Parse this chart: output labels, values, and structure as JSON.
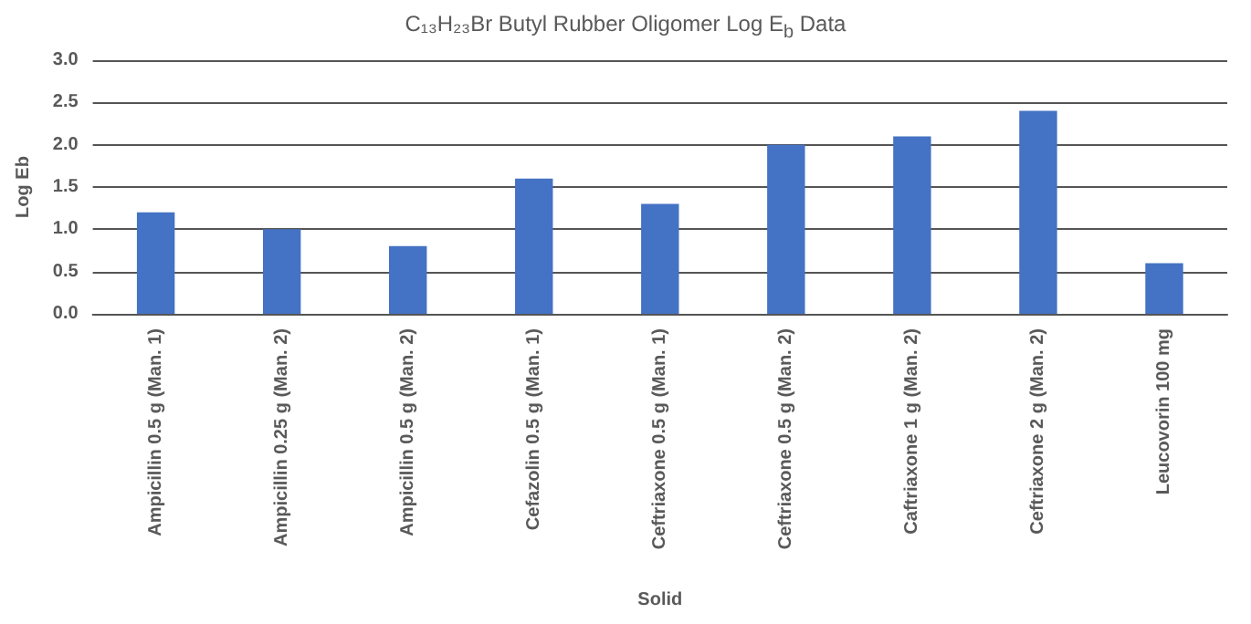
{
  "chart_data": {
    "type": "bar",
    "title": "C₁₃H₂₃Br Butyl Rubber Oligomer Log E$_{b}$ Data",
    "xlabel": "Solid",
    "ylabel": "Log Eb",
    "categories": [
      "Ampicillin 0.5 g (Man. 1)",
      "Ampicillin 0.25 g (Man. 2)",
      "Ampicillin 0.5 g (Man. 2)",
      "Cefazolin 0.5 g (Man. 1)",
      "Ceftriaxone 0.5 g (Man. 1)",
      "Ceftriaxone 0.5 g (Man. 2)",
      "Caftriaxone 1 g (Man. 2)",
      "Ceftriaxone 2 g (Man. 2)",
      "Leucovorin 100 mg"
    ],
    "values": [
      1.2,
      1.0,
      0.8,
      1.6,
      1.3,
      2.0,
      2.1,
      2.4,
      0.6
    ],
    "color": "#4472c4",
    "ylim": [
      0,
      3
    ],
    "yticks": [
      {
        "value": 0,
        "label": "0.0"
      },
      {
        "value": 0.5,
        "label": "0.5"
      },
      {
        "value": 1,
        "label": "1.0"
      },
      {
        "value": 1.5,
        "label": "1.5"
      },
      {
        "value": 2,
        "label": "2.0"
      },
      {
        "value": 2.5,
        "label": "2.5"
      },
      {
        "value": 3,
        "label": "3.0"
      }
    ],
    "grid": "y"
  }
}
